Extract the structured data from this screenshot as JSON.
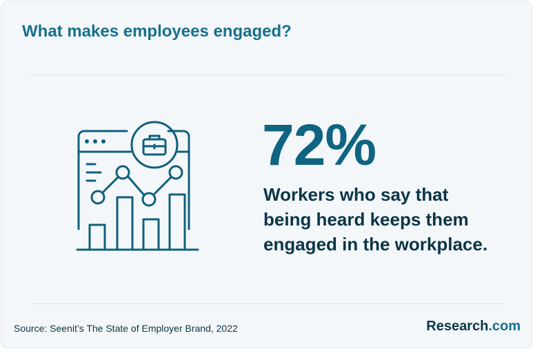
{
  "header": {
    "title": "What makes employees engaged?"
  },
  "stat": {
    "value": "72%",
    "description": [
      "Workers who say that",
      "being heard keeps them",
      "engaged in the workplace."
    ]
  },
  "footer": {
    "source": "Source: Seenit’s The State of Employer Brand, 2022",
    "brand": "Research",
    "brand_suffix": ".com"
  }
}
